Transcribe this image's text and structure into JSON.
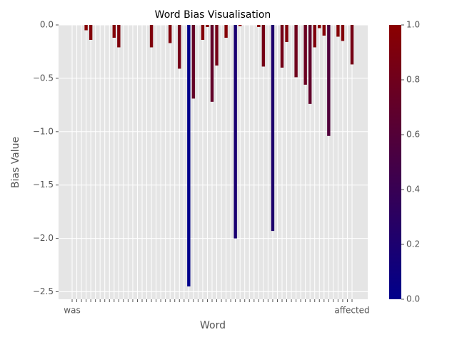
{
  "chart_data": {
    "type": "bar",
    "title": "Word Bias Visualisation",
    "x_label": "Word",
    "y_label": "Bias Value",
    "categories": [
      "was",
      null,
      null,
      null,
      null,
      null,
      null,
      null,
      null,
      null,
      null,
      null,
      null,
      null,
      null,
      null,
      null,
      null,
      null,
      null,
      null,
      null,
      null,
      null,
      null,
      null,
      null,
      null,
      null,
      null,
      null,
      null,
      null,
      null,
      null,
      null,
      null,
      null,
      null,
      null,
      null,
      null,
      null,
      null,
      null,
      null,
      null,
      null,
      null,
      null,
      null,
      null,
      null,
      null,
      null,
      null,
      null,
      null,
      null,
      null,
      "affected"
    ],
    "values": [
      0,
      0,
      0,
      -0.05,
      -0.14,
      0,
      0,
      0,
      0,
      -0.12,
      -0.21,
      0,
      0,
      0,
      0,
      0,
      0,
      -0.21,
      0,
      0,
      0,
      -0.17,
      0,
      -0.41,
      0,
      -2.45,
      -0.69,
      0,
      -0.14,
      -0.02,
      -0.72,
      -0.38,
      0,
      -0.12,
      0,
      -2.0,
      -0.01,
      0,
      0,
      0,
      -0.02,
      -0.39,
      0,
      -1.93,
      0,
      -0.4,
      -0.16,
      0,
      -0.49,
      0,
      -0.56,
      -0.74,
      -0.21,
      -0.03,
      -0.1,
      -1.04,
      0,
      -0.11,
      -0.15,
      0,
      -0.37
    ],
    "ylim": [
      -2.57,
      0
    ],
    "yticks": [
      {
        "value": -2.5,
        "label": "−2.5"
      },
      {
        "value": -2.0,
        "label": "−2.0"
      },
      {
        "value": -1.5,
        "label": "−1.5"
      },
      {
        "value": -1.0,
        "label": "−1.0"
      },
      {
        "value": -0.5,
        "label": "−0.5"
      },
      {
        "value": 0,
        "label": "0.0"
      }
    ],
    "grid": true,
    "colormap": [
      "#00008b",
      "#8b0000"
    ],
    "colorbar_lim": [
      0,
      1
    ],
    "colorbar_ticks": [
      {
        "value": 0,
        "label": "0.0"
      },
      0.2,
      0.4,
      0.6,
      0.8,
      {
        "value": 1,
        "label": "1.0"
      }
    ]
  }
}
